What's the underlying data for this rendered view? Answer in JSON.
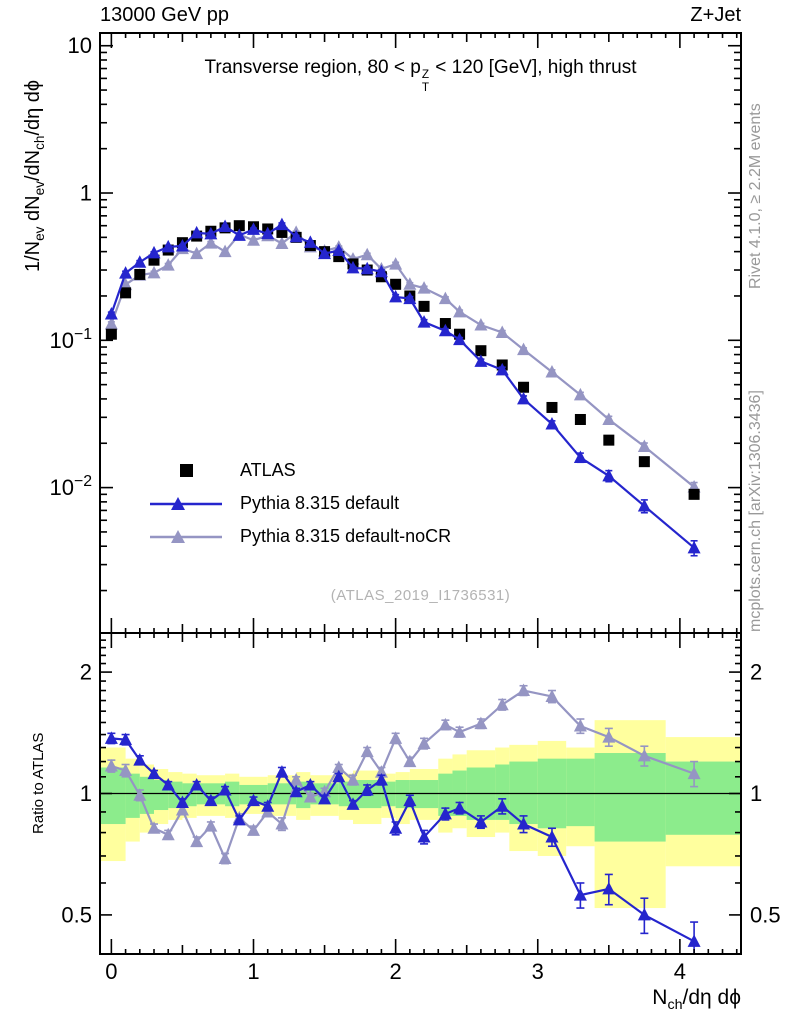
{
  "header": {
    "left": "13000 GeV pp",
    "right": "Z+Jet"
  },
  "side_notes": {
    "top": "Rivet 4.1.0, ≥ 2.2M events",
    "bottom": "mcplots.cern.ch [arXiv:1306.3436]"
  },
  "watermark": "(ATLAS_2019_I1736531)",
  "legend": {
    "items": [
      "ATLAS",
      "Pythia 8.315 default",
      "Pythia 8.315 default-noCR"
    ]
  },
  "chart_data": {
    "type": "line",
    "title": "Transverse region, 80 < p~[T|Z] < 120 [GeV], high thrust",
    "xlabel": "N_[ch]/dη dϕ",
    "ylabel_main": "1/N_[ev] dN_[ev]/dN_[ch]/dη dϕ",
    "ylabel_ratio": "Ratio to ATLAS",
    "x_axis": {
      "min": -0.08,
      "max": 4.43,
      "ticks": [
        {
          "v": 0,
          "label": "0"
        },
        {
          "v": 1,
          "label": "1"
        },
        {
          "v": 2,
          "label": "2"
        },
        {
          "v": 3,
          "label": "3"
        },
        {
          "v": 4,
          "label": "4"
        }
      ],
      "minor_step": 0.1,
      "medium_step": 0.5
    },
    "y_axis_main": {
      "scale": "log",
      "min": 0.00103,
      "max": 12.2,
      "ticks": [
        {
          "v": 10,
          "label": "10"
        },
        {
          "v": 1,
          "label": "1"
        },
        {
          "v": 0.1,
          "label": "10^−1"
        },
        {
          "v": 0.01,
          "label": "10^−2"
        }
      ]
    },
    "y_axis_ratio": {
      "scale": "log",
      "min": 0.4,
      "max": 2.5,
      "ticks": [
        {
          "v": 2,
          "label": "2"
        },
        {
          "v": 1,
          "label": "1"
        },
        {
          "v": 0.5,
          "label": "0.5"
        }
      ]
    },
    "x": [
      0,
      0.1,
      0.2,
      0.3,
      0.4,
      0.5,
      0.6,
      0.7,
      0.8,
      0.9,
      1,
      1.1,
      1.2,
      1.3,
      1.4,
      1.5,
      1.6,
      1.7,
      1.8,
      1.9,
      2,
      2.1,
      2.2,
      2.35,
      2.45,
      2.6,
      2.75,
      2.9,
      3.1,
      3.3,
      3.5,
      3.75,
      4.1
    ],
    "series": [
      {
        "name": "ATLAS",
        "role": "data",
        "color": "#000000",
        "marker": "square",
        "line": false,
        "rel_err": 0.04,
        "values": [
          0.11,
          0.21,
          0.28,
          0.35,
          0.41,
          0.46,
          0.51,
          0.55,
          0.58,
          0.6,
          0.59,
          0.57,
          0.54,
          0.5,
          0.44,
          0.4,
          0.37,
          0.33,
          0.3,
          0.27,
          0.24,
          0.2,
          0.17,
          0.13,
          0.11,
          0.085,
          0.068,
          0.048,
          0.035,
          0.029,
          0.021,
          0.015,
          0.009
        ]
      },
      {
        "name": "Pythia 8.315 default",
        "role": "mc",
        "color": "#2525cd",
        "marker": "triangle",
        "line": true,
        "values": [
          0.151,
          0.286,
          0.339,
          0.392,
          0.431,
          0.437,
          0.536,
          0.528,
          0.592,
          0.516,
          0.566,
          0.53,
          0.61,
          0.505,
          0.462,
          0.388,
          0.407,
          0.31,
          0.306,
          0.292,
          0.197,
          0.192,
          0.133,
          0.116,
          0.101,
          0.072,
          0.063,
          0.04,
          0.027,
          0.016,
          0.012,
          0.0075,
          0.0039
        ],
        "ratio": [
          1.37,
          1.36,
          1.21,
          1.12,
          1.05,
          0.95,
          1.05,
          0.96,
          1.02,
          0.86,
          0.96,
          0.93,
          1.13,
          1.01,
          1.05,
          0.97,
          1.1,
          0.94,
          1.02,
          1.08,
          0.82,
          0.96,
          0.78,
          0.89,
          0.92,
          0.85,
          0.93,
          0.84,
          0.78,
          0.56,
          0.58,
          0.5,
          0.43
        ],
        "ratio_err": [
          0.04,
          0.04,
          0.03,
          0.02,
          0.02,
          0.02,
          0.02,
          0.02,
          0.02,
          0.02,
          0.02,
          0.02,
          0.03,
          0.02,
          0.02,
          0.02,
          0.02,
          0.02,
          0.03,
          0.03,
          0.03,
          0.03,
          0.03,
          0.03,
          0.03,
          0.03,
          0.04,
          0.04,
          0.04,
          0.04,
          0.05,
          0.05,
          0.05
        ]
      },
      {
        "name": "Pythia 8.315 default-noCR",
        "role": "mc",
        "color": "#9595c3",
        "marker": "triangle",
        "line": true,
        "values": [
          0.129,
          0.239,
          0.277,
          0.287,
          0.324,
          0.419,
          0.388,
          0.457,
          0.4,
          0.522,
          0.478,
          0.513,
          0.454,
          0.54,
          0.431,
          0.404,
          0.429,
          0.356,
          0.381,
          0.305,
          0.329,
          0.24,
          0.226,
          0.192,
          0.156,
          0.127,
          0.113,
          0.0864,
          0.0609,
          0.0426,
          0.029,
          0.019,
          0.0101
        ],
        "ratio": [
          1.17,
          1.14,
          0.99,
          0.82,
          0.79,
          0.91,
          0.76,
          0.83,
          0.69,
          0.87,
          0.81,
          0.9,
          0.84,
          1.08,
          0.98,
          1.01,
          1.16,
          1.08,
          1.27,
          1.13,
          1.37,
          1.2,
          1.33,
          1.48,
          1.42,
          1.49,
          1.66,
          1.8,
          1.74,
          1.47,
          1.38,
          1.24,
          1.12
        ],
        "ratio_err": [
          0.04,
          0.04,
          0.03,
          0.02,
          0.02,
          0.02,
          0.02,
          0.02,
          0.02,
          0.02,
          0.02,
          0.02,
          0.03,
          0.02,
          0.02,
          0.02,
          0.02,
          0.03,
          0.03,
          0.03,
          0.04,
          0.03,
          0.04,
          0.04,
          0.04,
          0.04,
          0.05,
          0.05,
          0.06,
          0.06,
          0.07,
          0.07,
          0.08
        ]
      }
    ],
    "ratio_reference": 1,
    "ratio_bands": {
      "yellow": "#ffff9e",
      "green": "#8cec8c",
      "segments": [
        {
          "x0": -0.08,
          "x1": 0.1,
          "y_lo": 0.68,
          "y_hi": 1.3,
          "g_lo": 0.84,
          "g_hi": 1.16
        },
        {
          "x0": 0.1,
          "x1": 0.2,
          "y_lo": 0.76,
          "y_hi": 1.22,
          "g_lo": 0.87,
          "g_hi": 1.12
        },
        {
          "x0": 0.2,
          "x1": 0.3,
          "y_lo": 0.8,
          "y_hi": 1.18,
          "g_lo": 0.89,
          "g_hi": 1.1
        },
        {
          "x0": 0.3,
          "x1": 0.4,
          "y_lo": 0.84,
          "y_hi": 1.15,
          "g_lo": 0.91,
          "g_hi": 1.08
        },
        {
          "x0": 0.4,
          "x1": 0.5,
          "y_lo": 0.86,
          "y_hi": 1.13,
          "g_lo": 0.92,
          "g_hi": 1.07
        },
        {
          "x0": 0.5,
          "x1": 0.6,
          "y_lo": 0.87,
          "y_hi": 1.12,
          "g_lo": 0.93,
          "g_hi": 1.06
        },
        {
          "x0": 0.6,
          "x1": 0.8,
          "y_lo": 0.88,
          "y_hi": 1.11,
          "g_lo": 0.94,
          "g_hi": 1.06
        },
        {
          "x0": 0.8,
          "x1": 0.9,
          "y_lo": 0.87,
          "y_hi": 1.12,
          "g_lo": 0.93,
          "g_hi": 1.07
        },
        {
          "x0": 0.9,
          "x1": 1.1,
          "y_lo": 0.89,
          "y_hi": 1.1,
          "g_lo": 0.94,
          "g_hi": 1.05
        },
        {
          "x0": 1.1,
          "x1": 1.3,
          "y_lo": 0.88,
          "y_hi": 1.11,
          "g_lo": 0.94,
          "g_hi": 1.06
        },
        {
          "x0": 1.3,
          "x1": 1.4,
          "y_lo": 0.86,
          "y_hi": 1.13,
          "g_lo": 0.92,
          "g_hi": 1.07
        },
        {
          "x0": 1.4,
          "x1": 1.6,
          "y_lo": 0.88,
          "y_hi": 1.11,
          "g_lo": 0.94,
          "g_hi": 1.06
        },
        {
          "x0": 1.6,
          "x1": 1.7,
          "y_lo": 0.86,
          "y_hi": 1.12,
          "g_lo": 0.93,
          "g_hi": 1.07
        },
        {
          "x0": 1.7,
          "x1": 1.9,
          "y_lo": 0.84,
          "y_hi": 1.14,
          "g_lo": 0.92,
          "g_hi": 1.08
        },
        {
          "x0": 1.9,
          "x1": 2.0,
          "y_lo": 0.87,
          "y_hi": 1.12,
          "g_lo": 0.93,
          "g_hi": 1.07
        },
        {
          "x0": 2.0,
          "x1": 2.1,
          "y_lo": 0.84,
          "y_hi": 1.13,
          "g_lo": 0.92,
          "g_hi": 1.08
        },
        {
          "x0": 2.1,
          "x1": 2.3,
          "y_lo": 0.86,
          "y_hi": 1.15,
          "g_lo": 0.92,
          "g_hi": 1.08
        },
        {
          "x0": 2.3,
          "x1": 2.4,
          "y_lo": 0.8,
          "y_hi": 1.22,
          "g_lo": 0.88,
          "g_hi": 1.12
        },
        {
          "x0": 2.4,
          "x1": 2.5,
          "y_lo": 0.82,
          "y_hi": 1.25,
          "g_lo": 0.88,
          "g_hi": 1.14
        },
        {
          "x0": 2.5,
          "x1": 2.7,
          "y_lo": 0.78,
          "y_hi": 1.28,
          "g_lo": 0.86,
          "g_hi": 1.16
        },
        {
          "x0": 2.7,
          "x1": 2.8,
          "y_lo": 0.8,
          "y_hi": 1.3,
          "g_lo": 0.86,
          "g_hi": 1.18
        },
        {
          "x0": 2.8,
          "x1": 3.0,
          "y_lo": 0.72,
          "y_hi": 1.32,
          "g_lo": 0.84,
          "g_hi": 1.2
        },
        {
          "x0": 3.0,
          "x1": 3.2,
          "y_lo": 0.7,
          "y_hi": 1.35,
          "g_lo": 0.82,
          "g_hi": 1.22
        },
        {
          "x0": 3.2,
          "x1": 3.4,
          "y_lo": 0.74,
          "y_hi": 1.3,
          "g_lo": 0.83,
          "g_hi": 1.22
        },
        {
          "x0": 3.4,
          "x1": 3.9,
          "y_lo": 0.52,
          "y_hi": 1.52,
          "g_lo": 0.76,
          "g_hi": 1.26
        },
        {
          "x0": 3.9,
          "x1": 4.43,
          "y_lo": 0.66,
          "y_hi": 1.38,
          "g_lo": 0.79,
          "g_hi": 1.2
        }
      ]
    }
  }
}
